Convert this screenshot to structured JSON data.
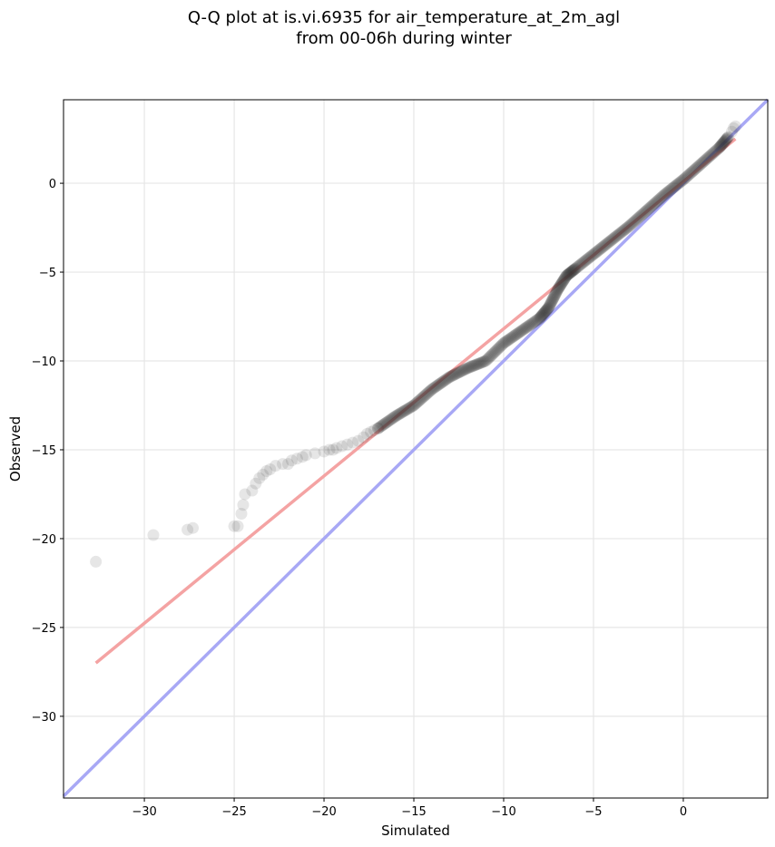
{
  "chart_data": {
    "type": "scatter",
    "title": "Q-Q plot at is.vi.6935 for air_temperature_at_2m_agl",
    "subtitle": "from 00-06h during winter",
    "xlabel": "Simulated",
    "ylabel": "Observed",
    "xlim": [
      -34.5,
      4.7
    ],
    "ylim": [
      -34.6,
      4.7
    ],
    "xticks": [
      -30,
      -25,
      -20,
      -15,
      -10,
      -5,
      0
    ],
    "yticks": [
      -30,
      -25,
      -20,
      -15,
      -10,
      -5,
      0
    ],
    "xtick_labels": [
      "−30",
      "−25",
      "−20",
      "−15",
      "−10",
      "−5",
      "0"
    ],
    "ytick_labels": [
      "−30",
      "−25",
      "−20",
      "−15",
      "−10",
      "−5",
      "0"
    ],
    "grid": true,
    "points": {
      "color": "#333333",
      "tail_x": [
        -32.7,
        -29.5,
        -27.6,
        -27.3,
        -25.0,
        -24.8,
        -24.6,
        -24.5,
        -24.4,
        -24.0,
        -23.8,
        -23.6,
        -23.4,
        -23.2,
        -23.0,
        -22.7,
        -22.3,
        -22.0,
        -21.8,
        -21.5,
        -21.2,
        -21.0,
        -20.5,
        -20.0,
        -19.7,
        -19.5,
        -19.3,
        -19.0,
        -18.7,
        -18.4,
        -18.1,
        -17.8,
        -17.6,
        -17.4,
        -17.2,
        -17.0
      ],
      "tail_y": [
        -21.3,
        -19.8,
        -19.5,
        -19.4,
        -19.3,
        -19.3,
        -18.6,
        -18.1,
        -17.5,
        -17.3,
        -16.9,
        -16.6,
        -16.4,
        -16.2,
        -16.1,
        -15.9,
        -15.8,
        -15.8,
        -15.6,
        -15.5,
        -15.4,
        -15.3,
        -15.2,
        -15.1,
        -15.0,
        -15.0,
        -14.9,
        -14.8,
        -14.7,
        -14.6,
        -14.5,
        -14.3,
        -14.1,
        -14.0,
        -13.9,
        -13.8
      ],
      "dense_x": [
        -17.0,
        -16.0,
        -15.0,
        -14.0,
        -13.0,
        -12.0,
        -11.0,
        -10.0,
        -9.0,
        -8.0,
        -7.5,
        -7.0,
        -6.5,
        -6.0,
        -5.0,
        -4.0,
        -3.0,
        -2.0,
        -1.0,
        0.0,
        1.0,
        2.0,
        2.5
      ],
      "dense_y": [
        -13.8,
        -13.1,
        -12.5,
        -11.6,
        -10.9,
        -10.4,
        -10.0,
        -9.0,
        -8.3,
        -7.6,
        -7.0,
        -6.0,
        -5.2,
        -4.8,
        -4.0,
        -3.2,
        -2.4,
        -1.5,
        -0.6,
        0.2,
        1.1,
        2.0,
        2.6
      ],
      "top_x": [
        2.7,
        2.8,
        2.9
      ],
      "top_y": [
        2.9,
        3.1,
        3.2
      ]
    },
    "fit_line": {
      "color": "#f4a3a3",
      "x": [
        -32.7,
        2.9
      ],
      "y": [
        -27.0,
        2.5
      ]
    },
    "identity_line": {
      "color": "#a8a8f5",
      "x": [
        -34.5,
        4.7
      ],
      "y": [
        -34.5,
        4.7
      ]
    }
  }
}
